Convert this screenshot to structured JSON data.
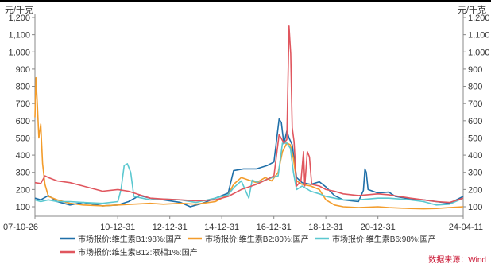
{
  "chart_data": {
    "type": "line",
    "unit_left": "元/千克",
    "unit_right": "元/千克",
    "ylim": [
      0,
      1200
    ],
    "yticks": [
      100,
      200,
      300,
      400,
      500,
      600,
      700,
      800,
      900,
      1000,
      1100,
      1200
    ],
    "ytick_labels": [
      "100",
      "200",
      "300",
      "400",
      "500",
      "600",
      "700",
      "800",
      "900",
      "1,000",
      "1,100",
      "1,200"
    ],
    "xlim": [
      "2007-10-26",
      "2024-04-11"
    ],
    "xticks": [
      {
        "date": "2007-10-26",
        "label": "07-10-26"
      },
      {
        "date": "2010-12-31",
        "label": "10-12-31"
      },
      {
        "date": "2012-12-31",
        "label": "12-12-31"
      },
      {
        "date": "2014-12-31",
        "label": "14-12-31"
      },
      {
        "date": "2016-12-31",
        "label": "16-12-31"
      },
      {
        "date": "2018-12-31",
        "label": "18-12-31"
      },
      {
        "date": "2020-12-31",
        "label": "20-12-31"
      },
      {
        "date": "2024-04-11",
        "label": "24-04-11"
      }
    ],
    "grid": false,
    "legend_position": "bottom",
    "source": "数据来源：Wind",
    "series": [
      {
        "name": "市场报价:维生素B1:98%:国产",
        "color": "#1f6fa8",
        "points": [
          [
            "2007-10-26",
            150
          ],
          [
            "2008-01-15",
            140
          ],
          [
            "2008-05-01",
            165
          ],
          [
            "2008-09-01",
            130
          ],
          [
            "2009-03-01",
            110
          ],
          [
            "2009-09-01",
            125
          ],
          [
            "2010-06-01",
            105
          ],
          [
            "2011-01-01",
            110
          ],
          [
            "2011-06-01",
            130
          ],
          [
            "2011-11-01",
            165
          ],
          [
            "2012-04-01",
            150
          ],
          [
            "2012-10-01",
            140
          ],
          [
            "2013-06-01",
            125
          ],
          [
            "2013-10-15",
            100
          ],
          [
            "2014-04-01",
            120
          ],
          [
            "2014-10-01",
            150
          ],
          [
            "2015-04-01",
            180
          ],
          [
            "2015-06-15",
            310
          ],
          [
            "2015-11-01",
            320
          ],
          [
            "2016-05-01",
            320
          ],
          [
            "2016-10-01",
            340
          ],
          [
            "2017-01-01",
            360
          ],
          [
            "2017-03-15",
            610
          ],
          [
            "2017-04-15",
            590
          ],
          [
            "2017-05-20",
            465
          ],
          [
            "2017-07-01",
            540
          ],
          [
            "2017-08-01",
            500
          ],
          [
            "2017-09-15",
            460
          ],
          [
            "2017-11-15",
            270
          ],
          [
            "2018-02-01",
            240
          ],
          [
            "2018-06-01",
            230
          ],
          [
            "2018-10-01",
            245
          ],
          [
            "2019-01-01",
            215
          ],
          [
            "2019-03-01",
            190
          ],
          [
            "2019-05-01",
            165
          ],
          [
            "2019-09-01",
            140
          ],
          [
            "2020-04-01",
            130
          ],
          [
            "2020-06-10",
            195
          ],
          [
            "2020-07-01",
            320
          ],
          [
            "2020-07-20",
            300
          ],
          [
            "2020-08-15",
            200
          ],
          [
            "2020-12-31",
            180
          ],
          [
            "2021-06-01",
            185
          ],
          [
            "2021-09-01",
            160
          ],
          [
            "2022-04-01",
            145
          ],
          [
            "2022-10-01",
            140
          ],
          [
            "2023-04-01",
            130
          ],
          [
            "2023-10-01",
            120
          ],
          [
            "2024-04-11",
            160
          ]
        ]
      },
      {
        "name": "市场报价:维生素B2:80%:国产",
        "color": "#f39c2b",
        "points": [
          [
            "2007-10-26",
            620
          ],
          [
            "2007-11-10",
            850
          ],
          [
            "2007-12-01",
            680
          ],
          [
            "2007-12-20",
            500
          ],
          [
            "2008-01-15",
            580
          ],
          [
            "2008-02-10",
            350
          ],
          [
            "2008-03-15",
            230
          ],
          [
            "2008-05-01",
            160
          ],
          [
            "2008-09-01",
            140
          ],
          [
            "2009-03-01",
            120
          ],
          [
            "2009-09-01",
            110
          ],
          [
            "2010-06-01",
            105
          ],
          [
            "2011-01-01",
            110
          ],
          [
            "2011-08-01",
            115
          ],
          [
            "2012-04-01",
            120
          ],
          [
            "2012-10-01",
            115
          ],
          [
            "2013-06-01",
            120
          ],
          [
            "2014-01-01",
            115
          ],
          [
            "2014-10-01",
            130
          ],
          [
            "2015-04-01",
            170
          ],
          [
            "2015-06-15",
            230
          ],
          [
            "2015-10-01",
            270
          ],
          [
            "2016-05-01",
            240
          ],
          [
            "2016-09-01",
            270
          ],
          [
            "2016-12-01",
            250
          ],
          [
            "2017-03-01",
            300
          ],
          [
            "2017-05-01",
            420
          ],
          [
            "2017-07-01",
            470
          ],
          [
            "2017-08-20",
            460
          ],
          [
            "2017-10-01",
            380
          ],
          [
            "2017-11-15",
            250
          ],
          [
            "2018-02-01",
            230
          ],
          [
            "2018-06-01",
            220
          ],
          [
            "2018-10-01",
            200
          ],
          [
            "2019-01-01",
            140
          ],
          [
            "2019-05-01",
            110
          ],
          [
            "2019-09-01",
            100
          ],
          [
            "2020-04-01",
            95
          ],
          [
            "2020-12-31",
            100
          ],
          [
            "2021-06-01",
            95
          ],
          [
            "2022-04-01",
            90
          ],
          [
            "2022-10-01",
            88
          ],
          [
            "2023-04-01",
            90
          ],
          [
            "2023-10-01",
            95
          ],
          [
            "2024-04-11",
            100
          ]
        ]
      },
      {
        "name": "市场报价:维生素B6:98%:国产",
        "color": "#5bc8d0",
        "points": [
          [
            "2007-10-26",
            140
          ],
          [
            "2008-01-15",
            130
          ],
          [
            "2008-05-01",
            140
          ],
          [
            "2008-09-01",
            130
          ],
          [
            "2009-03-01",
            130
          ],
          [
            "2009-09-01",
            125
          ],
          [
            "2010-06-01",
            120
          ],
          [
            "2011-01-01",
            130
          ],
          [
            "2011-02-15",
            200
          ],
          [
            "2011-04-01",
            340
          ],
          [
            "2011-05-15",
            350
          ],
          [
            "2011-07-01",
            300
          ],
          [
            "2011-08-15",
            160
          ],
          [
            "2012-04-01",
            140
          ],
          [
            "2012-10-01",
            145
          ],
          [
            "2013-06-01",
            140
          ],
          [
            "2014-01-01",
            125
          ],
          [
            "2014-10-01",
            150
          ],
          [
            "2015-04-01",
            170
          ],
          [
            "2015-06-15",
            210
          ],
          [
            "2015-10-01",
            250
          ],
          [
            "2016-01-15",
            150
          ],
          [
            "2016-03-01",
            255
          ],
          [
            "2016-06-01",
            240
          ],
          [
            "2016-10-01",
            260
          ],
          [
            "2017-03-01",
            280
          ],
          [
            "2017-05-01",
            470
          ],
          [
            "2017-07-01",
            470
          ],
          [
            "2017-08-20",
            440
          ],
          [
            "2017-10-01",
            300
          ],
          [
            "2017-11-15",
            200
          ],
          [
            "2018-02-01",
            220
          ],
          [
            "2018-06-01",
            190
          ],
          [
            "2018-10-01",
            175
          ],
          [
            "2019-01-01",
            160
          ],
          [
            "2019-05-01",
            150
          ],
          [
            "2019-09-01",
            140
          ],
          [
            "2020-04-01",
            140
          ],
          [
            "2020-12-31",
            150
          ],
          [
            "2021-06-01",
            150
          ],
          [
            "2022-04-01",
            140
          ],
          [
            "2022-10-01",
            130
          ],
          [
            "2023-04-01",
            110
          ],
          [
            "2023-10-01",
            115
          ],
          [
            "2024-04-11",
            150
          ]
        ]
      },
      {
        "name": "市场报价:维生素B12:液相1%:国产",
        "color": "#e0565e",
        "points": [
          [
            "2007-10-26",
            240
          ],
          [
            "2008-01-15",
            235
          ],
          [
            "2008-03-15",
            280
          ],
          [
            "2008-05-01",
            270
          ],
          [
            "2008-09-01",
            250
          ],
          [
            "2009-03-01",
            240
          ],
          [
            "2009-09-01",
            220
          ],
          [
            "2010-06-01",
            190
          ],
          [
            "2011-01-01",
            200
          ],
          [
            "2011-06-01",
            190
          ],
          [
            "2011-11-01",
            170
          ],
          [
            "2012-04-01",
            150
          ],
          [
            "2012-10-01",
            145
          ],
          [
            "2013-06-01",
            140
          ],
          [
            "2014-01-01",
            135
          ],
          [
            "2014-10-01",
            140
          ],
          [
            "2015-04-01",
            160
          ],
          [
            "2015-10-01",
            200
          ],
          [
            "2016-05-01",
            230
          ],
          [
            "2016-10-01",
            260
          ],
          [
            "2017-01-01",
            280
          ],
          [
            "2017-03-15",
            520
          ],
          [
            "2017-05-20",
            470
          ],
          [
            "2017-07-01",
            490
          ],
          [
            "2017-08-01",
            1150
          ],
          [
            "2017-08-25",
            990
          ],
          [
            "2017-09-15",
            560
          ],
          [
            "2017-10-10",
            480
          ],
          [
            "2017-11-15",
            220
          ],
          [
            "2018-01-15",
            250
          ],
          [
            "2018-02-20",
            420
          ],
          [
            "2018-03-10",
            220
          ],
          [
            "2018-04-15",
            420
          ],
          [
            "2018-05-15",
            390
          ],
          [
            "2018-06-15",
            230
          ],
          [
            "2018-10-01",
            220
          ],
          [
            "2019-01-01",
            200
          ],
          [
            "2019-05-01",
            190
          ],
          [
            "2019-09-01",
            175
          ],
          [
            "2020-04-01",
            165
          ],
          [
            "2020-12-31",
            175
          ],
          [
            "2021-06-01",
            170
          ],
          [
            "2022-04-01",
            150
          ],
          [
            "2022-10-01",
            140
          ],
          [
            "2023-04-01",
            130
          ],
          [
            "2023-10-01",
            125
          ],
          [
            "2024-04-11",
            150
          ]
        ]
      }
    ]
  }
}
